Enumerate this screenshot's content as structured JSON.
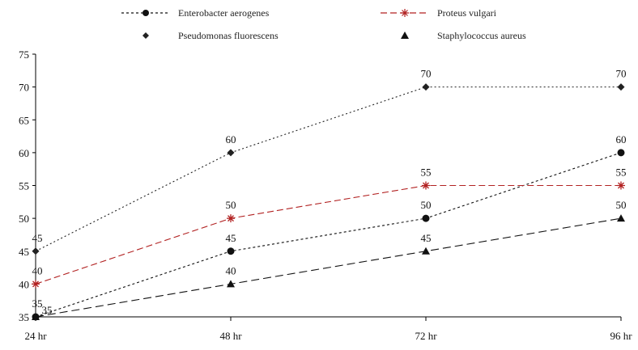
{
  "chart_data": {
    "type": "line",
    "categories": [
      "24 hr",
      "48 hr",
      "72 hr",
      "96 hr"
    ],
    "ylim": [
      35,
      75
    ],
    "yticks": [
      35,
      40,
      45,
      50,
      55,
      60,
      65,
      70,
      75
    ],
    "grid": false,
    "legend_position": "top",
    "series": [
      {
        "name": "Enterobacter aerogenes",
        "values": [
          35,
          45,
          50,
          60
        ],
        "color": "#111111",
        "marker": "circle",
        "dash": "3,3"
      },
      {
        "name": "Proteus vulgari",
        "values": [
          40,
          50,
          55,
          55
        ],
        "color": "#b22222",
        "marker": "star",
        "dash": "8,4"
      },
      {
        "name": "Pseudomonas fluorescens",
        "values": [
          45,
          60,
          70,
          70
        ],
        "color": "#222222",
        "marker": "diamond",
        "dash": "2,3"
      },
      {
        "name": "Staphylococcus aureus",
        "values": [
          35,
          40,
          45,
          50
        ],
        "color": "#111111",
        "marker": "triangle",
        "dash": "10,5"
      }
    ]
  }
}
